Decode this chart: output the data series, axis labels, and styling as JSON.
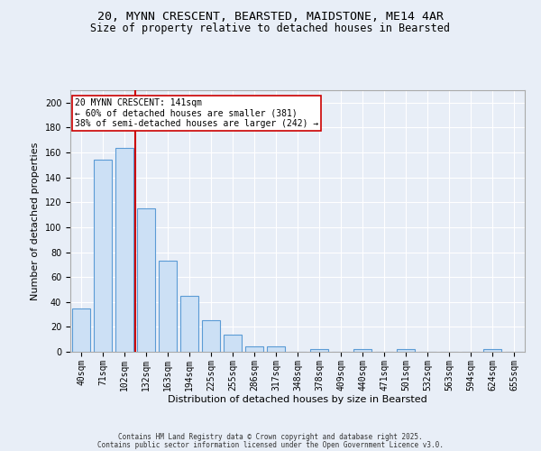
{
  "title1": "20, MYNN CRESCENT, BEARSTED, MAIDSTONE, ME14 4AR",
  "title2": "Size of property relative to detached houses in Bearsted",
  "xlabel": "Distribution of detached houses by size in Bearsted",
  "ylabel": "Number of detached properties",
  "categories": [
    "40sqm",
    "71sqm",
    "102sqm",
    "132sqm",
    "163sqm",
    "194sqm",
    "225sqm",
    "255sqm",
    "286sqm",
    "317sqm",
    "348sqm",
    "378sqm",
    "409sqm",
    "440sqm",
    "471sqm",
    "501sqm",
    "532sqm",
    "563sqm",
    "594sqm",
    "624sqm",
    "655sqm"
  ],
  "values": [
    35,
    154,
    164,
    115,
    73,
    45,
    25,
    14,
    4,
    4,
    0,
    2,
    0,
    2,
    0,
    2,
    0,
    0,
    0,
    2,
    0
  ],
  "bar_color": "#cce0f5",
  "bar_edge_color": "#5b9bd5",
  "vline_x_index": 2.5,
  "vline_color": "#cc0000",
  "annotation_text": "20 MYNN CRESCENT: 141sqm\n← 60% of detached houses are smaller (381)\n38% of semi-detached houses are larger (242) →",
  "annotation_box_color": "#ffffff",
  "annotation_box_edge": "#cc0000",
  "ylim": [
    0,
    210
  ],
  "yticks": [
    0,
    20,
    40,
    60,
    80,
    100,
    120,
    140,
    160,
    180,
    200
  ],
  "background_color": "#e8eef7",
  "plot_bg_color": "#e8eef7",
  "footer1": "Contains HM Land Registry data © Crown copyright and database right 2025.",
  "footer2": "Contains public sector information licensed under the Open Government Licence v3.0.",
  "title_fontsize": 9.5,
  "subtitle_fontsize": 8.5,
  "axis_label_fontsize": 8,
  "tick_fontsize": 7,
  "annotation_fontsize": 7,
  "footer_fontsize": 5.5
}
